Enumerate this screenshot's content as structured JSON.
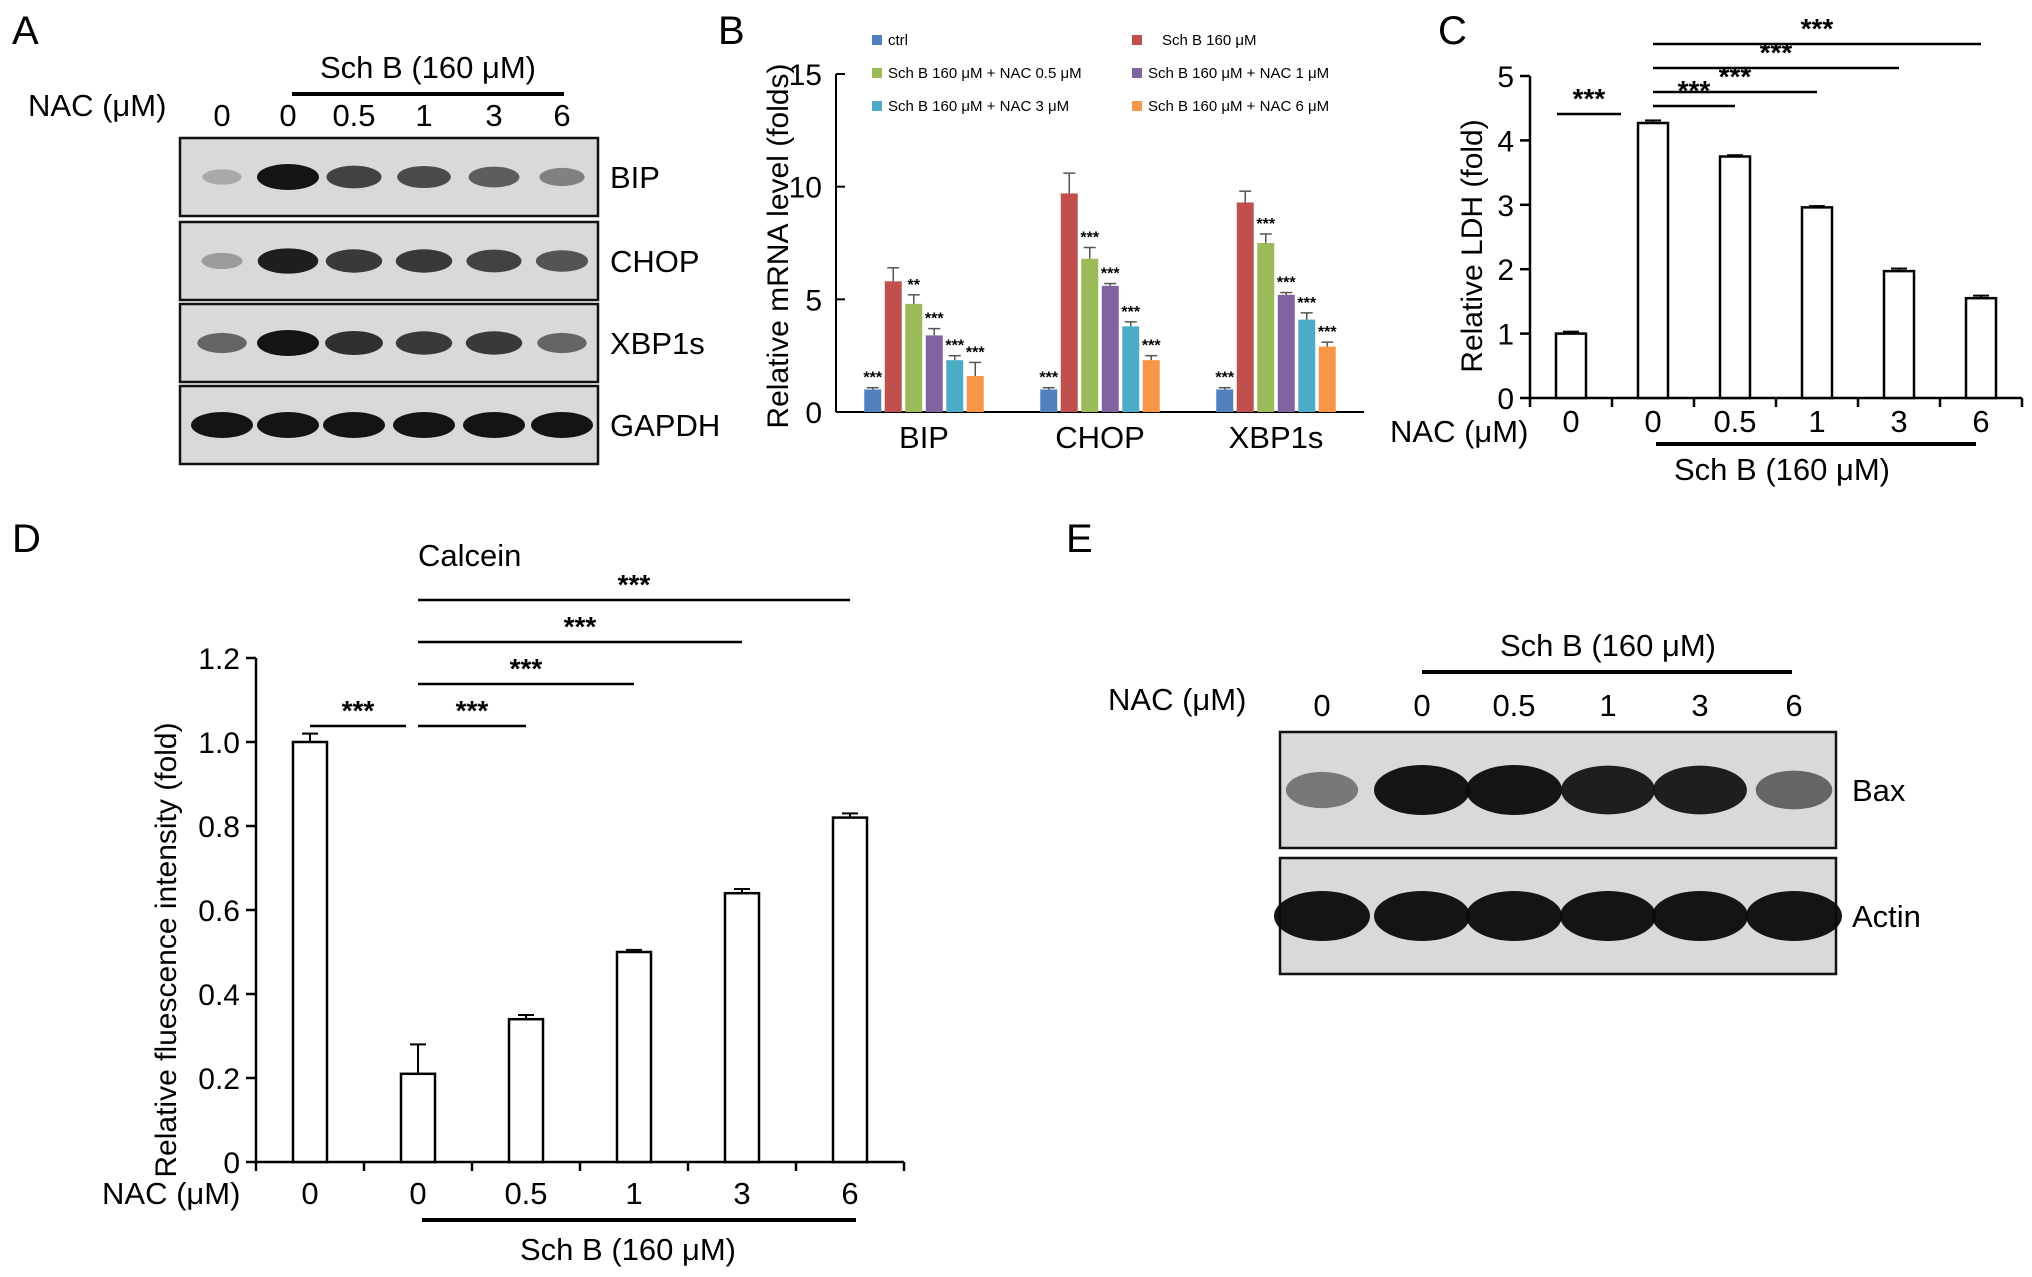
{
  "panels": {
    "A": {
      "letter": "A",
      "group_label": "Sch B (160 μM)",
      "nac_label": "NAC (μM)",
      "doses": [
        "0",
        "0",
        "0.5",
        "1",
        "3",
        "6"
      ],
      "blots": [
        "BIP",
        "CHOP",
        "XBP1s",
        "GAPDH"
      ],
      "band_intensity": [
        [
          0.18,
          1.0,
          0.75,
          0.7,
          0.6,
          0.4
        ],
        [
          0.25,
          0.95,
          0.8,
          0.8,
          0.75,
          0.65
        ],
        [
          0.55,
          1.0,
          0.85,
          0.8,
          0.8,
          0.55
        ],
        [
          1.0,
          1.0,
          1.0,
          1.0,
          1.0,
          1.0
        ]
      ]
    },
    "B": {
      "letter": "B"
    },
    "C": {
      "letter": "C",
      "group_label": "Sch B (160 μM)",
      "sig": [
        "***",
        "***",
        "***",
        "***",
        "***"
      ]
    },
    "D": {
      "letter": "D",
      "title": "Calcein",
      "group_label": "Sch B (160 μM)",
      "sig": [
        "***",
        "***",
        "***",
        "***",
        "***"
      ]
    },
    "E": {
      "letter": "E",
      "group_label": "Sch B (160 μM)",
      "nac_label": "NAC (μM)",
      "doses": [
        "0",
        "0",
        "0.5",
        "1",
        "3",
        "6"
      ],
      "blots": [
        "Bax",
        "Actin"
      ],
      "band_intensity": [
        [
          0.45,
          1.0,
          1.0,
          0.95,
          0.95,
          0.55
        ],
        [
          1.0,
          1.0,
          1.0,
          1.0,
          1.0,
          1.0
        ]
      ]
    }
  },
  "chart_data": [
    {
      "panel": "B",
      "type": "bar",
      "categories": [
        "BIP",
        "CHOP",
        "XBP1s"
      ],
      "ylabel": "Relative mRNA level (folds)",
      "ylim": [
        0,
        15
      ],
      "yticks": [
        "0",
        "5",
        "10",
        "15"
      ],
      "grid": false,
      "legend_position": "top",
      "series": [
        {
          "name": "ctrl",
          "color": "#4f81bd",
          "values": [
            1.0,
            1.0,
            1.0
          ],
          "errors": [
            0.08,
            0.08,
            0.08
          ],
          "sig": [
            "***",
            "***",
            "***"
          ]
        },
        {
          "name": "Sch B 160 μM",
          "color": "#c0504d",
          "values": [
            5.8,
            9.7,
            9.3
          ],
          "errors": [
            0.6,
            0.9,
            0.5
          ],
          "sig": [
            "",
            "",
            ""
          ]
        },
        {
          "name": "Sch B 160 μM + NAC 0.5 μM",
          "color": "#9bbb59",
          "values": [
            4.8,
            6.8,
            7.5
          ],
          "errors": [
            0.4,
            0.5,
            0.4
          ],
          "sig": [
            "**",
            "***",
            "***"
          ]
        },
        {
          "name": "Sch B 160 μM + NAC 1 μM",
          "color": "#8064a2",
          "values": [
            3.4,
            5.6,
            5.2
          ],
          "errors": [
            0.3,
            0.1,
            0.1
          ],
          "sig": [
            "***",
            "***",
            "***"
          ]
        },
        {
          "name": "Sch B 160 μM + NAC 3 μM",
          "color": "#4bacc6",
          "values": [
            2.3,
            3.8,
            4.1
          ],
          "errors": [
            0.2,
            0.2,
            0.3
          ],
          "sig": [
            "***",
            "***",
            "***"
          ]
        },
        {
          "name": "Sch B 160 μM + NAC 6 μM",
          "color": "#f79646",
          "values": [
            1.6,
            2.3,
            2.9
          ],
          "errors": [
            0.6,
            0.2,
            0.2
          ],
          "sig": [
            "***",
            "***",
            "***"
          ]
        }
      ]
    },
    {
      "panel": "C",
      "type": "bar",
      "xlabel": "NAC (μM)",
      "categories": [
        "0",
        "0",
        "0.5",
        "1",
        "3",
        "6"
      ],
      "values": [
        1.0,
        4.27,
        3.75,
        2.96,
        1.97,
        1.55
      ],
      "errors": [
        0.03,
        0.04,
        0.02,
        0.02,
        0.04,
        0.04
      ],
      "ylabel": "Relative LDH (fold)",
      "ylim": [
        0,
        5
      ],
      "yticks": [
        "0",
        "1",
        "2",
        "3",
        "4",
        "5"
      ],
      "grid": false
    },
    {
      "panel": "D",
      "type": "bar",
      "title": "Calcein",
      "xlabel": "NAC (μM)",
      "categories": [
        "0",
        "0",
        "0.5",
        "1",
        "3",
        "6"
      ],
      "values": [
        1.0,
        0.21,
        0.34,
        0.5,
        0.64,
        0.82
      ],
      "errors": [
        0.02,
        0.07,
        0.01,
        0.005,
        0.01,
        0.01
      ],
      "ylabel": "Relative fluescence intensity (fold)",
      "ylim": [
        0,
        1.2
      ],
      "yticks": [
        "0",
        "0.2",
        "0.4",
        "0.6",
        "0.8",
        "1.0",
        "1.2"
      ],
      "grid": false
    }
  ]
}
